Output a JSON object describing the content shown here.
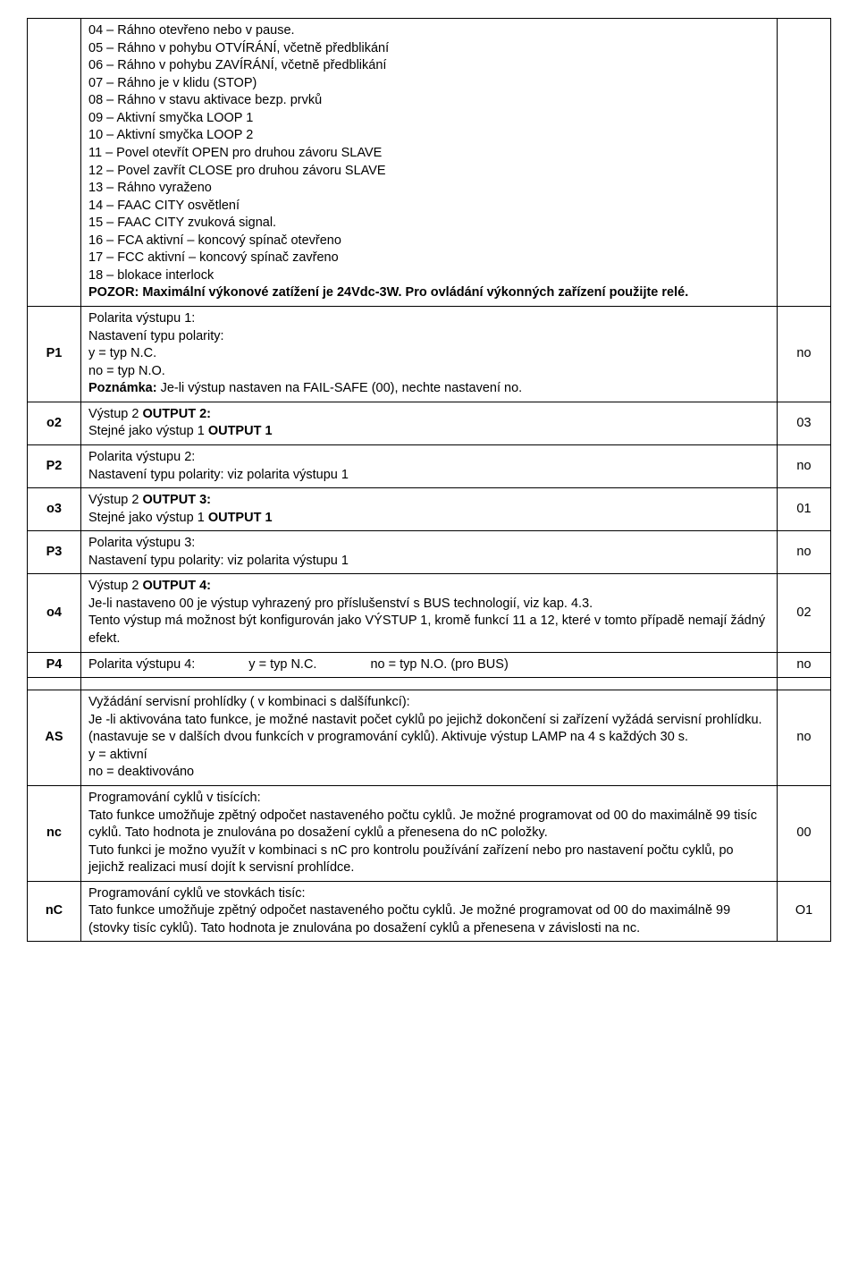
{
  "rows": [
    {
      "code": "",
      "desc_lines": [
        {
          "t": "04 – Ráhno otevřeno nebo v pause."
        },
        {
          "t": "05 – Ráhno v pohybu OTVÍRÁNÍ, včetně předblikání"
        },
        {
          "t": "06 – Ráhno v pohybu ZAVÍRÁNÍ, včetně předblikání"
        },
        {
          "t": "07 – Ráhno je v klidu (STOP)"
        },
        {
          "t": "08 – Ráhno v stavu aktivace bezp. prvků"
        },
        {
          "t": "09 – Aktivní smyčka LOOP 1"
        },
        {
          "t": "10 – Aktivní smyčka LOOP 2"
        },
        {
          "t": "11 – Povel otevřít OPEN pro druhou závoru SLAVE"
        },
        {
          "t": "12 – Povel zavřít CLOSE pro druhou závoru SLAVE"
        },
        {
          "t": "13 – Ráhno vyraženo"
        },
        {
          "t": "14 – FAAC CITY osvětlení"
        },
        {
          "t": "15 – FAAC CITY zvuková signal."
        },
        {
          "t": "16 – FCA aktivní – koncový spínač otevřeno"
        },
        {
          "t": "17 – FCC aktivní – koncový spínač zavřeno"
        },
        {
          "t": "18 – blokace interlock"
        },
        {
          "t": "POZOR: Maximální výkonové zatížení je 24Vdc-3W. Pro ovládání výkonných zařízení použijte relé.",
          "bold": true
        }
      ],
      "val": ""
    },
    {
      "code": "P1",
      "desc_lines": [
        {
          "t": "Polarita výstupu 1:"
        },
        {
          "t": "Nastavení typu polarity:"
        },
        {
          "t": "y = typ N.C."
        },
        {
          "t": "no = typ N.O."
        },
        {
          "prefix_bold": "Poznámka:",
          "rest": " Je-li výstup nastaven na FAIL-SAFE (00), nechte nastavení no."
        }
      ],
      "val": "no"
    },
    {
      "code": "o2",
      "desc_lines": [
        {
          "prefix": "Výstup 2 ",
          "bold_suffix": "OUTPUT 2:"
        },
        {
          "prefix": "Stejné jako výstup 1     ",
          "bold_suffix": "OUTPUT 1"
        }
      ],
      "val": "03"
    },
    {
      "code": "P2",
      "desc_lines": [
        {
          "t": "Polarita výstupu 2:"
        },
        {
          "t": "Nastavení typu polarity: viz polarita výstupu 1"
        }
      ],
      "val": "no"
    },
    {
      "code": "o3",
      "desc_lines": [
        {
          "prefix": "Výstup 2 ",
          "bold_suffix": "OUTPUT 3:"
        },
        {
          "prefix": "Stejné jako výstup 1     ",
          "bold_suffix": "OUTPUT 1"
        }
      ],
      "val": "01"
    },
    {
      "code": "P3",
      "desc_lines": [
        {
          "t": "Polarita výstupu 3:"
        },
        {
          "t": "Nastavení typu polarity: viz polarita výstupu 1"
        }
      ],
      "val": "no"
    },
    {
      "code": "o4",
      "desc_lines": [
        {
          "prefix": "Výstup 2 ",
          "bold_suffix": "OUTPUT 4:"
        },
        {
          "t": "Je-li nastaveno 00 je výstup vyhrazený pro příslušenství s BUS technologií, viz kap. 4.3."
        },
        {
          "t": "Tento výstup má možnost být konfigurován jako VÝSTUP 1, kromě funkcí 11 a 12, které v tomto případě nemají žádný efekt."
        }
      ],
      "val": "02"
    },
    {
      "code": "P4",
      "p4": {
        "a": "Polarita výstupu 4:",
        "b": "y = typ N.C.",
        "c": "no = typ N.O. (pro BUS)"
      },
      "val": "no"
    },
    {
      "spacer": true
    },
    {
      "code": "AS",
      "desc_lines": [
        {
          "t": "Vyžádání servisní prohlídky ( v kombinaci s dalšífunkcí):"
        },
        {
          "t": "Je -li aktivována tato funkce, je možné nastavit počet cyklů po jejichž dokončení si zařízení vyžádá servisní prohlídku. (nastavuje se v dalších dvou funkcích v programování cyklů). Aktivuje výstup LAMP na 4 s každých 30 s."
        },
        {
          "t": "y = aktivní"
        },
        {
          "t": "no = deaktivováno"
        }
      ],
      "val": "no"
    },
    {
      "code": "nc",
      "desc_lines": [
        {
          "t": "Programování cyklů v tisících:"
        },
        {
          "t": "Tato funkce umožňuje zpětný odpočet nastaveného počtu cyklů. Je možné programovat od 00 do maximálně 99 tisíc cyklů. Tato hodnota je znulována po dosažení cyklů a přenesena do nC položky."
        },
        {
          "t": "Tuto funkci je možno využít v kombinaci s nC pro kontrolu používání zařízení nebo pro nastavení počtu cyklů, po jejichž realizaci musí dojít k servisní prohlídce."
        }
      ],
      "val": "00"
    },
    {
      "code": "nC",
      "desc_lines": [
        {
          "t": "Programování cyklů ve stovkách tisíc:"
        },
        {
          "t": "Tato funkce umožňuje zpětný odpočet nastaveného počtu cyklů. Je možné programovat od 00 do maximálně 99 (stovky tisíc cyklů). Tato hodnota je znulována po dosažení cyklů a přenesena v závislosti na nc."
        }
      ],
      "val": "O1"
    }
  ]
}
